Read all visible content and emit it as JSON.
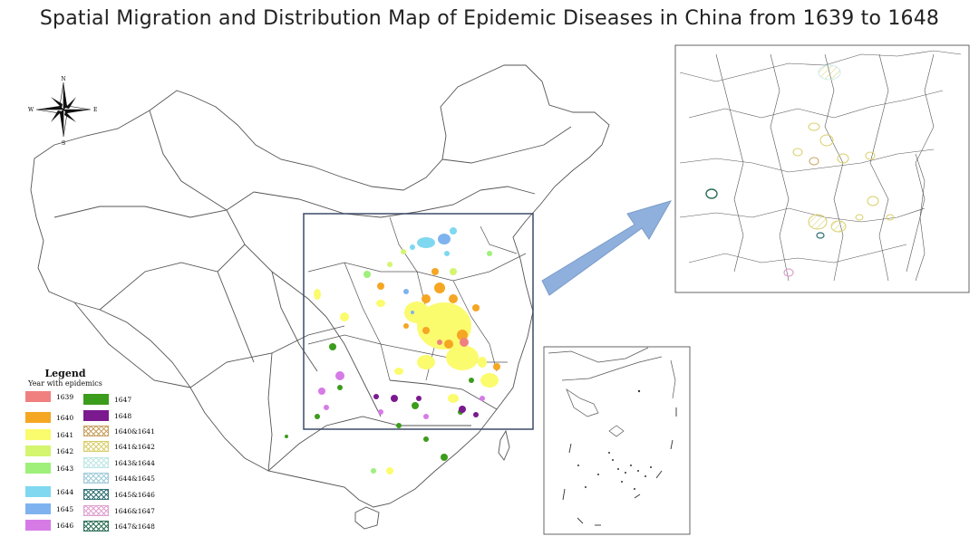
{
  "title": "Spatial Migration and Distribution Map of Epidemic Diseases in China from 1639 to 1648",
  "compass": {
    "n": "N",
    "s": "S",
    "e": "E",
    "w": "W"
  },
  "legend": {
    "title": "Legend",
    "subtitle": "Year with epidemics",
    "items": [
      {
        "label": "1639",
        "color": "#f08080",
        "pattern": "solid"
      },
      {
        "label": "1640",
        "color": "#f5a623",
        "pattern": "solid"
      },
      {
        "label": "1641",
        "color": "#fbfb6e",
        "pattern": "solid"
      },
      {
        "label": "1642",
        "color": "#d4f56f",
        "pattern": "solid"
      },
      {
        "label": "1643",
        "color": "#9ef07a",
        "pattern": "solid"
      },
      {
        "label": "1644",
        "color": "#7fd8f0",
        "pattern": "solid"
      },
      {
        "label": "1645",
        "color": "#7fb3ef",
        "pattern": "solid"
      },
      {
        "label": "1646",
        "color": "#d67be6",
        "pattern": "solid"
      },
      {
        "label": "1647",
        "color": "#3c9c1c",
        "pattern": "solid"
      },
      {
        "label": "1648",
        "color": "#7b1a8f",
        "pattern": "solid"
      },
      {
        "label": "1640&1641",
        "color": "#c8a060",
        "pattern": "hatch"
      },
      {
        "label": "1641&1642",
        "color": "#d9cf6a",
        "pattern": "hatch"
      },
      {
        "label": "1643&1644",
        "color": "#bfe6e6",
        "pattern": "hatch"
      },
      {
        "label": "1644&1645",
        "color": "#9fcbd9",
        "pattern": "hatch"
      },
      {
        "label": "1645&1646",
        "color": "#2f6f73",
        "pattern": "hatch"
      },
      {
        "label": "1646&1647",
        "color": "#e0a0d0",
        "pattern": "hatch"
      },
      {
        "label": "1647&1648",
        "color": "#2f6f58",
        "pattern": "hatch"
      }
    ]
  },
  "colors": {
    "outline": "#555555",
    "frame": "#3c4b68",
    "arrow": "#8fb0dc"
  }
}
